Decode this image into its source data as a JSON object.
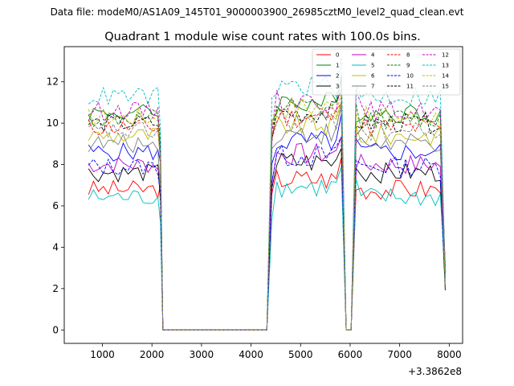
{
  "suptitle": "Data file: modeM0/AS1A09_145T01_9000003900_26985cztM0_level2_quad_clean.evt",
  "chart_data": {
    "type": "line",
    "title": "Quadrant 1 module wise count rates with 100.0s bins.",
    "xlabel": "",
    "ylabel": "",
    "x_offset_label": "+3.3862e8",
    "xlim": [
      230,
      8270
    ],
    "ylim": [
      -0.65,
      13.7
    ],
    "xticks": [
      1000,
      2000,
      3000,
      4000,
      5000,
      6000,
      7000,
      8000
    ],
    "yticks": [
      0,
      2,
      4,
      6,
      8,
      10,
      12
    ],
    "legend_position": "top-right",
    "series": [
      {
        "name": "0",
        "color": "#ff0000",
        "style": "solid",
        "base": 6.8
      },
      {
        "name": "1",
        "color": "#008000",
        "style": "solid",
        "base": 10.5
      },
      {
        "name": "2",
        "color": "#0000ff",
        "style": "solid",
        "base": 8.6
      },
      {
        "name": "3",
        "color": "#000000",
        "style": "solid",
        "base": 7.6
      },
      {
        "name": "4",
        "color": "#bf00bf",
        "style": "solid",
        "base": 8.0
      },
      {
        "name": "5",
        "color": "#00bfbf",
        "style": "solid",
        "base": 6.4
      },
      {
        "name": "6",
        "color": "#bfbf00",
        "style": "solid",
        "base": 9.4
      },
      {
        "name": "7",
        "color": "#7f7f7f",
        "style": "solid",
        "base": 9.0
      },
      {
        "name": "8",
        "color": "#ff0000",
        "style": "dashed",
        "base": 9.8
      },
      {
        "name": "9",
        "color": "#008000",
        "style": "dashed",
        "base": 10.2
      },
      {
        "name": "10",
        "color": "#0000ff",
        "style": "dashed",
        "base": 7.9
      },
      {
        "name": "11",
        "color": "#000000",
        "style": "dashed",
        "base": 10.0
      },
      {
        "name": "12",
        "color": "#bf00bf",
        "style": "dashed",
        "base": 10.6
      },
      {
        "name": "13",
        "color": "#00bfbf",
        "style": "dashed",
        "base": 11.3
      },
      {
        "name": "14",
        "color": "#bfbf00",
        "style": "dashed",
        "base": 10.3
      },
      {
        "name": "15",
        "color": "#7f7f7f",
        "style": "dashed",
        "base": 9.6
      }
    ],
    "segments": [
      {
        "start": 720,
        "end": 2120,
        "step": 100
      },
      {
        "start": 4520,
        "end": 5720,
        "step": 100
      },
      {
        "start": 6220,
        "end": 7820,
        "step": 100
      }
    ],
    "zero_points": [
      2220,
      4320,
      5920,
      6020
    ],
    "edge_points": [
      {
        "x": 2170,
        "value": 5.0
      },
      {
        "x": 4420,
        "value": 7.0
      },
      {
        "x": 5820,
        "value": 10.5
      },
      {
        "x": 6120,
        "value": 9.5
      },
      {
        "x": 7920,
        "value": 2.5
      }
    ]
  }
}
